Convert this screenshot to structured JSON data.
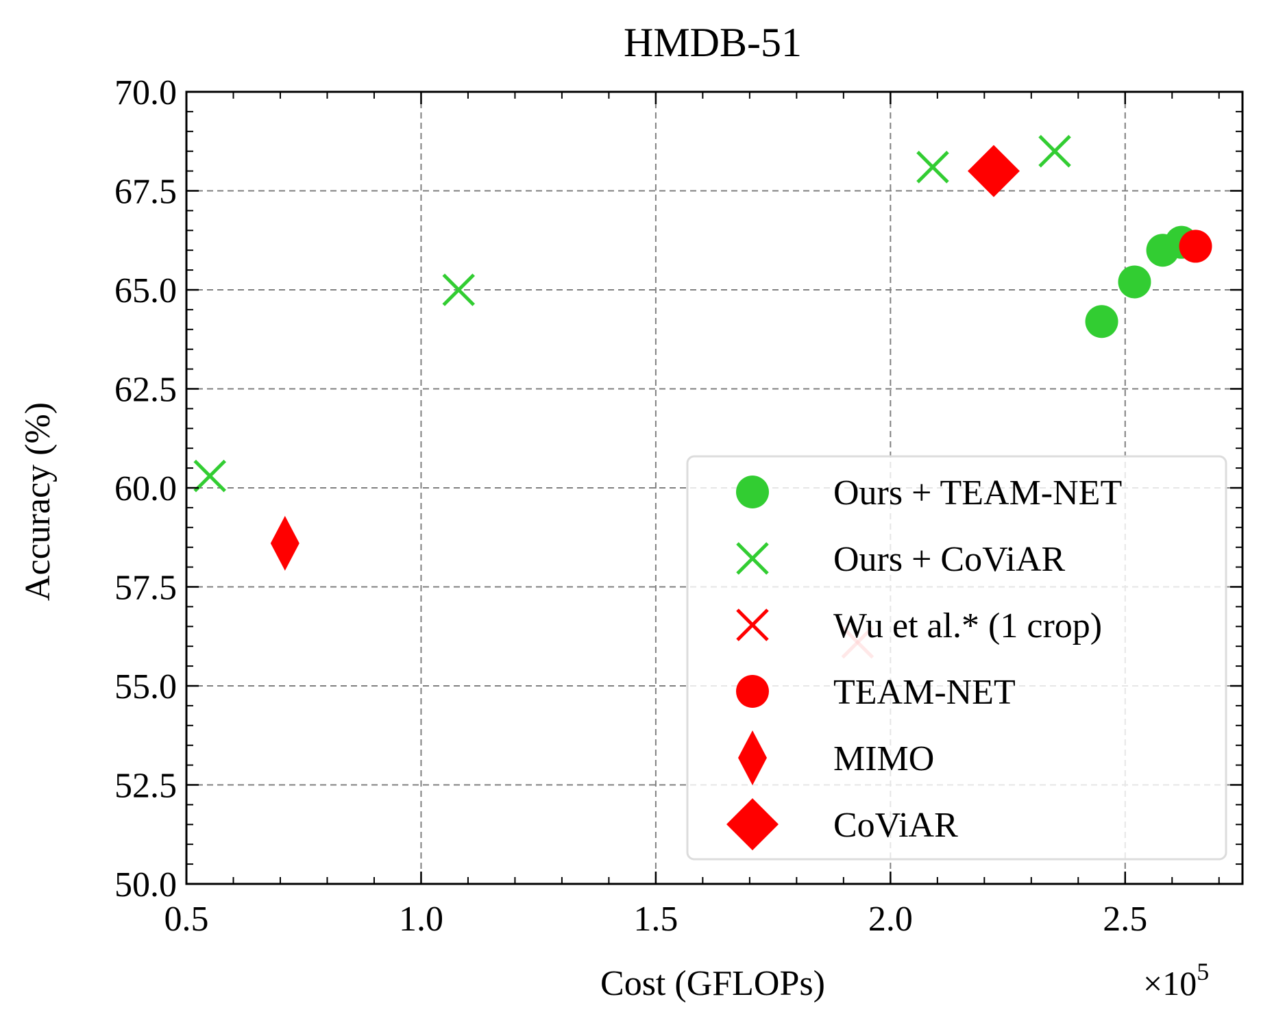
{
  "chart_data": {
    "type": "scatter",
    "title": "HMDB-51",
    "xlabel": "Cost (GFLOPs)",
    "ylabel": "Accuracy (%)",
    "x_multiplier_label": "×10",
    "x_multiplier_exp": "5",
    "xlim": [
      0.5,
      2.75
    ],
    "ylim": [
      50.0,
      70.0
    ],
    "xticks": [
      0.5,
      1.0,
      1.5,
      2.0,
      2.5
    ],
    "xtick_labels": [
      "0.5",
      "1.0",
      "1.5",
      "2.0",
      "2.5"
    ],
    "yticks": [
      50.0,
      52.5,
      55.0,
      57.5,
      60.0,
      62.5,
      65.0,
      67.5,
      70.0
    ],
    "ytick_labels": [
      "50.0",
      "52.5",
      "55.0",
      "57.5",
      "60.0",
      "62.5",
      "65.0",
      "67.5",
      "70.0"
    ],
    "grid": true,
    "legend_position": "lower-right",
    "series": [
      {
        "name": "Ours + TEAM-NET",
        "marker": "circle",
        "color": "#32cd32",
        "points": [
          [
            2.45,
            64.2
          ],
          [
            2.52,
            65.2
          ],
          [
            2.58,
            66.0
          ],
          [
            2.62,
            66.2
          ]
        ]
      },
      {
        "name": "Ours + CoViAR",
        "marker": "x",
        "color": "#32cd32",
        "points": [
          [
            0.55,
            60.3
          ],
          [
            1.08,
            65.0
          ],
          [
            2.09,
            68.1
          ],
          [
            2.35,
            68.5
          ]
        ]
      },
      {
        "name": "Wu et al.* (1 crop)",
        "marker": "x",
        "color": "#ff0000",
        "points": [
          [
            1.93,
            56.1
          ]
        ]
      },
      {
        "name": "TEAM-NET",
        "marker": "circle",
        "color": "#ff0000",
        "points": [
          [
            2.65,
            66.1
          ]
        ]
      },
      {
        "name": "MIMO",
        "marker": "thin-diamond",
        "color": "#ff0000",
        "points": [
          [
            0.71,
            58.6
          ]
        ]
      },
      {
        "name": "CoViAR",
        "marker": "diamond",
        "color": "#ff0000",
        "points": [
          [
            2.22,
            68.0
          ]
        ]
      }
    ]
  }
}
